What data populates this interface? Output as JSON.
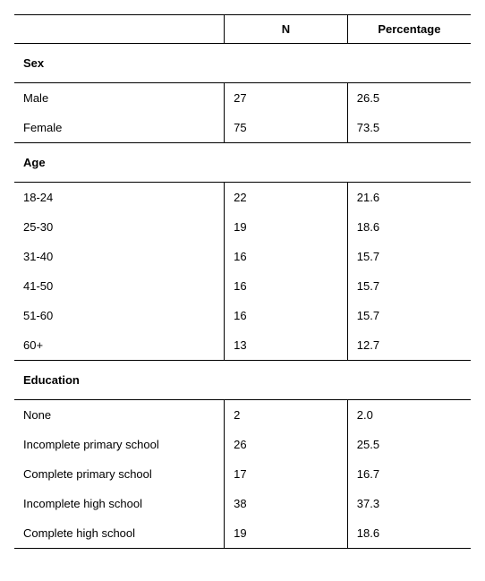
{
  "columns": {
    "n": "N",
    "pct": "Percentage"
  },
  "sections": [
    {
      "title": "Sex",
      "rows": [
        {
          "label": "Male",
          "n": "27",
          "pct": "26.5"
        },
        {
          "label": "Female",
          "n": "75",
          "pct": "73.5"
        }
      ]
    },
    {
      "title": "Age",
      "rows": [
        {
          "label": "18-24",
          "n": "22",
          "pct": "21.6"
        },
        {
          "label": "25-30",
          "n": "19",
          "pct": "18.6"
        },
        {
          "label": "31-40",
          "n": "16",
          "pct": "15.7"
        },
        {
          "label": "41-50",
          "n": "16",
          "pct": "15.7"
        },
        {
          "label": "51-60",
          "n": "16",
          "pct": "15.7"
        },
        {
          "label": "60+",
          "n": "13",
          "pct": "12.7"
        }
      ]
    },
    {
      "title": "Education",
      "rows": [
        {
          "label": "None",
          "n": "2",
          "pct": "2.0"
        },
        {
          "label": "Incomplete primary school",
          "n": "26",
          "pct": "25.5"
        },
        {
          "label": "Complete primary school",
          "n": "17",
          "pct": "16.7"
        },
        {
          "label": "Incomplete high school",
          "n": "38",
          "pct": "37.3"
        },
        {
          "label": "Complete high school",
          "n": "19",
          "pct": "18.6"
        }
      ]
    }
  ],
  "style": {
    "font_family": "Verdana",
    "font_size_pt": 10,
    "border_color": "#000000",
    "background_color": "#ffffff",
    "text_color": "#000000"
  }
}
